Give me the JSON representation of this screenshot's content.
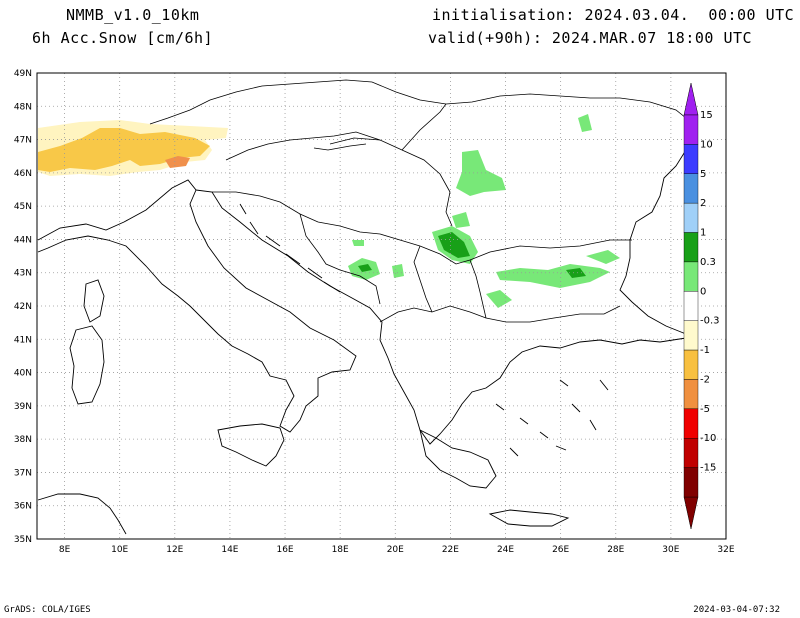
{
  "header": {
    "model": "NMMB_v1.0_10km",
    "field": "6h Acc.Snow [cm/6h]",
    "init": "initialisation: 2024.03.04.  00:00 UTC",
    "valid": "valid(+90h): 2024.MAR.07 18:00 UTC"
  },
  "axes": {
    "lat_labels": [
      "49N",
      "48N",
      "47N",
      "46N",
      "45N",
      "44N",
      "43N",
      "42N",
      "41N",
      "40N",
      "39N",
      "38N",
      "37N",
      "36N",
      "35N"
    ],
    "lat_values": [
      49,
      48,
      47,
      46,
      45,
      44,
      43,
      42,
      41,
      40,
      39,
      38,
      37,
      36,
      35
    ],
    "lon_labels": [
      "8E",
      "10E",
      "12E",
      "14E",
      "16E",
      "18E",
      "20E",
      "22E",
      "24E",
      "26E",
      "28E",
      "30E",
      "32E"
    ],
    "lon_values": [
      8,
      10,
      12,
      14,
      16,
      18,
      20,
      22,
      24,
      26,
      28,
      30,
      32
    ],
    "lon_range": [
      7,
      32
    ],
    "lat_range": [
      35,
      49
    ]
  },
  "colorbar": {
    "labels": [
      "15",
      "10",
      "5",
      "2",
      "1",
      "0.3",
      "0",
      "-0.3",
      "-1",
      "-2",
      "-5",
      "-10",
      "-15"
    ],
    "colors": [
      "#a020f0",
      "#3c3cff",
      "#4a90e0",
      "#a0d0f8",
      "#18a018",
      "#78e878",
      "#ffffff",
      "#fffacd",
      "#f8c040",
      "#f09040",
      "#f00000",
      "#c00000",
      "#800000"
    ]
  },
  "fields": {
    "alps_light": "#fff4c0",
    "alps_mid": "#f8c848",
    "alps_dark": "#f0904c",
    "snow_light": "#78e878",
    "snow_dark": "#18a018"
  },
  "footer": {
    "left": "GrADS: COLA/IGES",
    "right": "2024-03-04-07:32"
  }
}
